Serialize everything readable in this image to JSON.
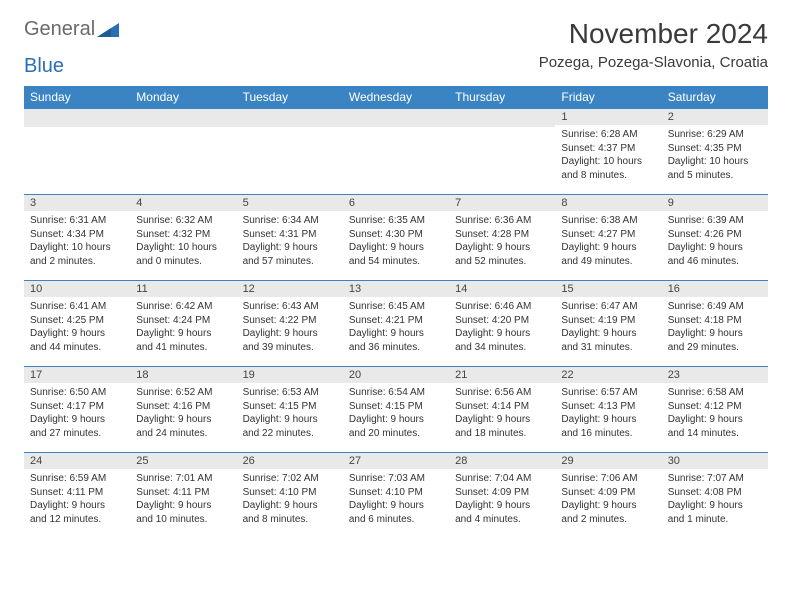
{
  "brand": {
    "part1": "General",
    "part2": "Blue"
  },
  "title": "November 2024",
  "location": "Pozega, Pozega-Slavonia, Croatia",
  "colors": {
    "header_bg": "#3b84c4",
    "header_text": "#ffffff",
    "daynum_bg": "#e9e9e9",
    "rule": "#3b84c4",
    "brand_gray": "#6a6a6a",
    "brand_blue": "#2b6fb3"
  },
  "daysOfWeek": [
    "Sunday",
    "Monday",
    "Tuesday",
    "Wednesday",
    "Thursday",
    "Friday",
    "Saturday"
  ],
  "weeks": [
    [
      null,
      null,
      null,
      null,
      null,
      {
        "n": "1",
        "sr": "Sunrise: 6:28 AM",
        "ss": "Sunset: 4:37 PM",
        "dl": "Daylight: 10 hours and 8 minutes."
      },
      {
        "n": "2",
        "sr": "Sunrise: 6:29 AM",
        "ss": "Sunset: 4:35 PM",
        "dl": "Daylight: 10 hours and 5 minutes."
      }
    ],
    [
      {
        "n": "3",
        "sr": "Sunrise: 6:31 AM",
        "ss": "Sunset: 4:34 PM",
        "dl": "Daylight: 10 hours and 2 minutes."
      },
      {
        "n": "4",
        "sr": "Sunrise: 6:32 AM",
        "ss": "Sunset: 4:32 PM",
        "dl": "Daylight: 10 hours and 0 minutes."
      },
      {
        "n": "5",
        "sr": "Sunrise: 6:34 AM",
        "ss": "Sunset: 4:31 PM",
        "dl": "Daylight: 9 hours and 57 minutes."
      },
      {
        "n": "6",
        "sr": "Sunrise: 6:35 AM",
        "ss": "Sunset: 4:30 PM",
        "dl": "Daylight: 9 hours and 54 minutes."
      },
      {
        "n": "7",
        "sr": "Sunrise: 6:36 AM",
        "ss": "Sunset: 4:28 PM",
        "dl": "Daylight: 9 hours and 52 minutes."
      },
      {
        "n": "8",
        "sr": "Sunrise: 6:38 AM",
        "ss": "Sunset: 4:27 PM",
        "dl": "Daylight: 9 hours and 49 minutes."
      },
      {
        "n": "9",
        "sr": "Sunrise: 6:39 AM",
        "ss": "Sunset: 4:26 PM",
        "dl": "Daylight: 9 hours and 46 minutes."
      }
    ],
    [
      {
        "n": "10",
        "sr": "Sunrise: 6:41 AM",
        "ss": "Sunset: 4:25 PM",
        "dl": "Daylight: 9 hours and 44 minutes."
      },
      {
        "n": "11",
        "sr": "Sunrise: 6:42 AM",
        "ss": "Sunset: 4:24 PM",
        "dl": "Daylight: 9 hours and 41 minutes."
      },
      {
        "n": "12",
        "sr": "Sunrise: 6:43 AM",
        "ss": "Sunset: 4:22 PM",
        "dl": "Daylight: 9 hours and 39 minutes."
      },
      {
        "n": "13",
        "sr": "Sunrise: 6:45 AM",
        "ss": "Sunset: 4:21 PM",
        "dl": "Daylight: 9 hours and 36 minutes."
      },
      {
        "n": "14",
        "sr": "Sunrise: 6:46 AM",
        "ss": "Sunset: 4:20 PM",
        "dl": "Daylight: 9 hours and 34 minutes."
      },
      {
        "n": "15",
        "sr": "Sunrise: 6:47 AM",
        "ss": "Sunset: 4:19 PM",
        "dl": "Daylight: 9 hours and 31 minutes."
      },
      {
        "n": "16",
        "sr": "Sunrise: 6:49 AM",
        "ss": "Sunset: 4:18 PM",
        "dl": "Daylight: 9 hours and 29 minutes."
      }
    ],
    [
      {
        "n": "17",
        "sr": "Sunrise: 6:50 AM",
        "ss": "Sunset: 4:17 PM",
        "dl": "Daylight: 9 hours and 27 minutes."
      },
      {
        "n": "18",
        "sr": "Sunrise: 6:52 AM",
        "ss": "Sunset: 4:16 PM",
        "dl": "Daylight: 9 hours and 24 minutes."
      },
      {
        "n": "19",
        "sr": "Sunrise: 6:53 AM",
        "ss": "Sunset: 4:15 PM",
        "dl": "Daylight: 9 hours and 22 minutes."
      },
      {
        "n": "20",
        "sr": "Sunrise: 6:54 AM",
        "ss": "Sunset: 4:15 PM",
        "dl": "Daylight: 9 hours and 20 minutes."
      },
      {
        "n": "21",
        "sr": "Sunrise: 6:56 AM",
        "ss": "Sunset: 4:14 PM",
        "dl": "Daylight: 9 hours and 18 minutes."
      },
      {
        "n": "22",
        "sr": "Sunrise: 6:57 AM",
        "ss": "Sunset: 4:13 PM",
        "dl": "Daylight: 9 hours and 16 minutes."
      },
      {
        "n": "23",
        "sr": "Sunrise: 6:58 AM",
        "ss": "Sunset: 4:12 PM",
        "dl": "Daylight: 9 hours and 14 minutes."
      }
    ],
    [
      {
        "n": "24",
        "sr": "Sunrise: 6:59 AM",
        "ss": "Sunset: 4:11 PM",
        "dl": "Daylight: 9 hours and 12 minutes."
      },
      {
        "n": "25",
        "sr": "Sunrise: 7:01 AM",
        "ss": "Sunset: 4:11 PM",
        "dl": "Daylight: 9 hours and 10 minutes."
      },
      {
        "n": "26",
        "sr": "Sunrise: 7:02 AM",
        "ss": "Sunset: 4:10 PM",
        "dl": "Daylight: 9 hours and 8 minutes."
      },
      {
        "n": "27",
        "sr": "Sunrise: 7:03 AM",
        "ss": "Sunset: 4:10 PM",
        "dl": "Daylight: 9 hours and 6 minutes."
      },
      {
        "n": "28",
        "sr": "Sunrise: 7:04 AM",
        "ss": "Sunset: 4:09 PM",
        "dl": "Daylight: 9 hours and 4 minutes."
      },
      {
        "n": "29",
        "sr": "Sunrise: 7:06 AM",
        "ss": "Sunset: 4:09 PM",
        "dl": "Daylight: 9 hours and 2 minutes."
      },
      {
        "n": "30",
        "sr": "Sunrise: 7:07 AM",
        "ss": "Sunset: 4:08 PM",
        "dl": "Daylight: 9 hours and 1 minute."
      }
    ]
  ]
}
